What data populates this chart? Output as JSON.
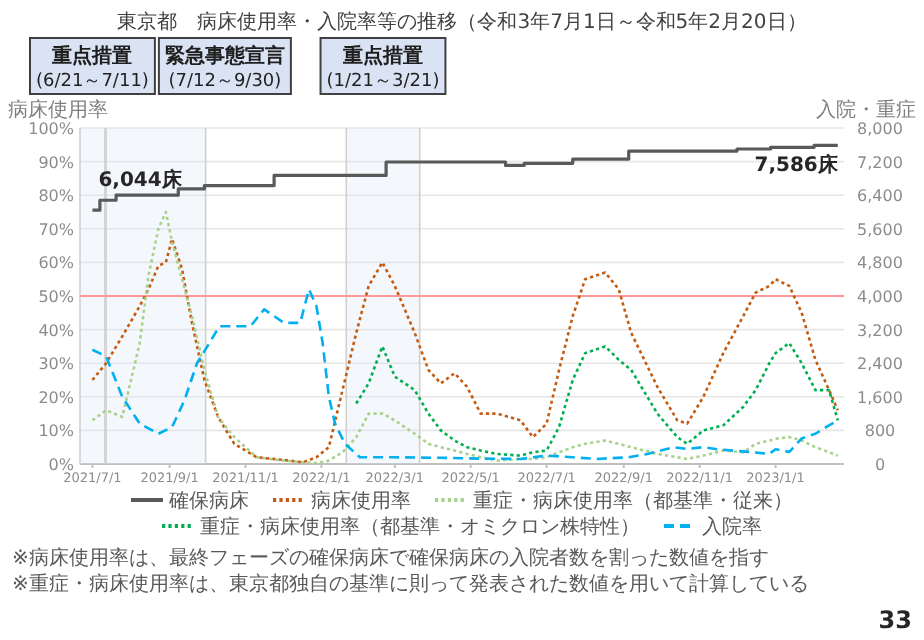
{
  "chart_data": {
    "type": "line",
    "title": "東京都　病床使用率・入院率等の推移（令和3年7月1日～令和5年2月20日）",
    "ylabel": "病床使用率",
    "y2label": "入院・重症",
    "x": [
      "2021-07-01",
      "2021-07-12",
      "2021-07-25",
      "2021-08-08",
      "2021-08-15",
      "2021-08-23",
      "2021-08-29",
      "2021-09-03",
      "2021-09-11",
      "2021-09-19",
      "2021-09-29",
      "2021-10-10",
      "2021-10-23",
      "2021-11-10",
      "2021-12-02",
      "2021-12-17",
      "2021-12-28",
      "2022-01-07",
      "2022-01-18",
      "2022-01-29",
      "2022-02-08",
      "2022-02-19",
      "2022-03-01",
      "2022-03-17",
      "2022-03-28",
      "2022-04-07",
      "2022-04-18",
      "2022-04-28",
      "2022-05-09",
      "2022-05-22",
      "2022-06-10",
      "2022-06-20",
      "2022-07-01",
      "2022-07-11",
      "2022-07-22",
      "2022-08-01",
      "2022-08-17",
      "2022-08-28",
      "2022-09-07",
      "2022-09-28",
      "2022-10-14",
      "2022-10-22",
      "2022-11-04",
      "2022-11-20",
      "2022-12-06",
      "2022-12-16",
      "2022-12-27",
      "2023-01-01",
      "2023-01-12",
      "2023-01-22",
      "2023-02-02",
      "2023-02-13",
      "2023-02-20"
    ],
    "xlim": [
      "2021-06-21",
      "2023-02-25"
    ],
    "xticks": [
      {
        "value": "2021-07-01",
        "label": "2021/7/1"
      },
      {
        "value": "2021-09-01",
        "label": "2021/9/1"
      },
      {
        "value": "2021-11-01",
        "label": "2021/11/1"
      },
      {
        "value": "2022-01-01",
        "label": "2022/1/1"
      },
      {
        "value": "2022-03-01",
        "label": "2022/3/1"
      },
      {
        "value": "2022-05-01",
        "label": "2022/5/1"
      },
      {
        "value": "2022-07-01",
        "label": "2022/7/1"
      },
      {
        "value": "2022-09-01",
        "label": "2022/9/1"
      },
      {
        "value": "2022-11-01",
        "label": "2022/11/1"
      },
      {
        "value": "2023-01-01",
        "label": "2023/1/1"
      }
    ],
    "ylim": [
      0,
      100
    ],
    "yticks": [
      {
        "value": 0,
        "label": "0%"
      },
      {
        "value": 10,
        "label": "10%"
      },
      {
        "value": 20,
        "label": "20%"
      },
      {
        "value": 30,
        "label": "30%"
      },
      {
        "value": 40,
        "label": "40%"
      },
      {
        "value": 50,
        "label": "50%"
      },
      {
        "value": 60,
        "label": "60%"
      },
      {
        "value": 70,
        "label": "70%"
      },
      {
        "value": 80,
        "label": "80%"
      },
      {
        "value": 90,
        "label": "90%"
      },
      {
        "value": 100,
        "label": "100%"
      }
    ],
    "y2lim": [
      0,
      8000
    ],
    "y2ticks": [
      0,
      800,
      {
        "value": 1600,
        "label": "1,600"
      },
      {
        "value": 2400,
        "label": "2,400"
      },
      {
        "value": 3200,
        "label": "3,200"
      },
      {
        "value": 4000,
        "label": "4,000"
      },
      {
        "value": 4800,
        "label": "4,800"
      },
      {
        "value": 5600,
        "label": "5,600"
      },
      {
        "value": 6400,
        "label": "6,400"
      },
      {
        "value": 7200,
        "label": "7,200"
      },
      {
        "value": 8000,
        "label": "8,000"
      }
    ],
    "series": [
      {
        "name": "確保病床",
        "type": "step",
        "axis": "y2",
        "color": "#595959",
        "line_style": "solid",
        "x": [
          "2021-07-01",
          "2021-07-07",
          "2021-07-20",
          "2021-09-08",
          "2021-09-29",
          "2021-11-24",
          "2022-02-22",
          "2022-05-29",
          "2022-06-13",
          "2022-07-22",
          "2022-09-05",
          "2022-12-01",
          "2022-12-28",
          "2023-02-01",
          "2023-02-20"
        ],
        "values": [
          6044,
          6280,
          6400,
          6550,
          6630,
          6870,
          7190,
          7110,
          7160,
          7260,
          7450,
          7500,
          7540,
          7586,
          7586
        ],
        "value_labels": [
          "6,044床",
          null,
          null,
          null,
          null,
          null,
          null,
          null,
          null,
          null,
          null,
          null,
          null,
          null,
          "7,586床"
        ]
      },
      {
        "name": "病床使用率",
        "color": "#c55a11",
        "line_style": "dotted",
        "values": [
          25,
          30,
          38,
          47,
          52,
          59,
          60,
          67,
          58,
          42,
          25,
          14,
          6,
          2,
          1.2,
          0.5,
          2,
          5,
          22,
          39,
          53,
          60,
          53,
          39,
          28,
          24,
          27,
          23,
          15,
          15,
          13,
          8,
          12,
          28,
          44,
          55,
          57,
          52,
          39,
          23,
          13,
          12,
          20,
          33,
          44,
          51,
          53,
          55,
          53,
          45,
          31,
          22,
          16
        ]
      },
      {
        "name": "重症・病床使用率（都基準・従来）",
        "color": "#a9d18e",
        "line_style": "dotted",
        "values": [
          13,
          16,
          14,
          36,
          56,
          70,
          75,
          66,
          55,
          44,
          28,
          14,
          8,
          2,
          1,
          0.5,
          0.3,
          1,
          3.5,
          8,
          15,
          15,
          13,
          9,
          6,
          5,
          4,
          3,
          2,
          1,
          1.5,
          1.5,
          2,
          3.5,
          5,
          6,
          7,
          6,
          5,
          3,
          2,
          1.5,
          2.5,
          4,
          3.5,
          6,
          7,
          7.5,
          8,
          7,
          5,
          3.5,
          2.5
        ]
      },
      {
        "name": "重症・病床使用率（都基準・オミクロン株特性）",
        "color": "#00b050",
        "line_style": "dotted",
        "values": [
          null,
          null,
          null,
          null,
          null,
          null,
          null,
          null,
          null,
          null,
          null,
          null,
          null,
          null,
          null,
          null,
          null,
          null,
          null,
          18,
          24,
          35,
          26,
          22,
          15,
          10,
          7,
          5,
          4,
          3,
          2.5,
          3.5,
          4,
          11,
          25,
          33,
          35,
          31,
          28,
          15,
          8,
          6,
          10,
          11.5,
          17,
          22,
          30,
          33,
          36,
          30,
          22,
          22,
          13
        ]
      },
      {
        "name": "入院率",
        "color": "#00b0f0",
        "line_style": "dashed",
        "x": [
          "2021-07-01",
          "2021-07-12",
          "2021-07-25",
          "2021-08-08",
          "2021-08-23",
          "2021-09-03",
          "2021-09-13",
          "2021-09-23",
          "2021-10-03",
          "2021-10-11",
          "2021-10-19",
          "2021-11-05",
          "2021-11-16",
          "2021-12-02",
          "2021-12-15",
          "2021-12-22",
          "2021-12-28",
          "2022-01-02",
          "2022-01-07",
          "2022-01-12",
          "2022-01-20",
          "2022-02-01",
          "2022-03-01",
          "2022-04-15",
          "2022-05-09",
          "2022-06-10",
          "2022-07-01",
          "2022-07-22",
          "2022-08-10",
          "2022-09-05",
          "2022-09-20",
          "2022-10-11",
          "2022-10-22",
          "2022-11-04",
          "2022-11-15",
          "2022-12-10",
          "2022-12-27",
          "2023-01-01",
          "2023-01-12",
          "2023-01-22",
          "2023-02-02",
          "2023-02-13",
          "2023-02-20"
        ],
        "values": [
          34,
          32,
          20,
          12,
          9,
          11,
          19,
          30,
          36,
          41,
          41,
          41,
          46,
          42,
          42,
          52,
          47,
          36,
          20,
          12,
          6,
          2,
          2,
          1.8,
          1.6,
          1.5,
          2.5,
          2,
          1.5,
          2,
          3,
          5,
          4.5,
          5,
          4.4,
          3.6,
          3,
          4.4,
          3.6,
          7.6,
          9,
          11.5,
          13
        ]
      }
    ],
    "ref_lines": [
      {
        "axis": "y",
        "value": 50,
        "color": "#ff9999"
      }
    ],
    "bands": [
      {
        "axis": "x",
        "from": "2021-06-21",
        "to": "2021-07-11",
        "label": "重点措置\n(6/21～7/11)",
        "color": "#dae3f3"
      },
      {
        "axis": "x",
        "from": "2021-07-12",
        "to": "2021-09-30",
        "label": "緊急事態宣言\n(7/12～9/30)",
        "color": "#dae3f3"
      },
      {
        "axis": "x",
        "from": "2022-01-21",
        "to": "2022-03-21",
        "label": "重点措置\n(1/21～3/21)",
        "color": "#dae3f3"
      }
    ],
    "grid": "y",
    "legend": "bottom",
    "annotations": [
      "※病床使用率は、最終フェーズの確保病床で確保病床の入院者数を割った数値を指す",
      "※重症・病床使用率は、東京都独自の基準に則って発表された数値を用いて計算している",
      "33"
    ]
  }
}
